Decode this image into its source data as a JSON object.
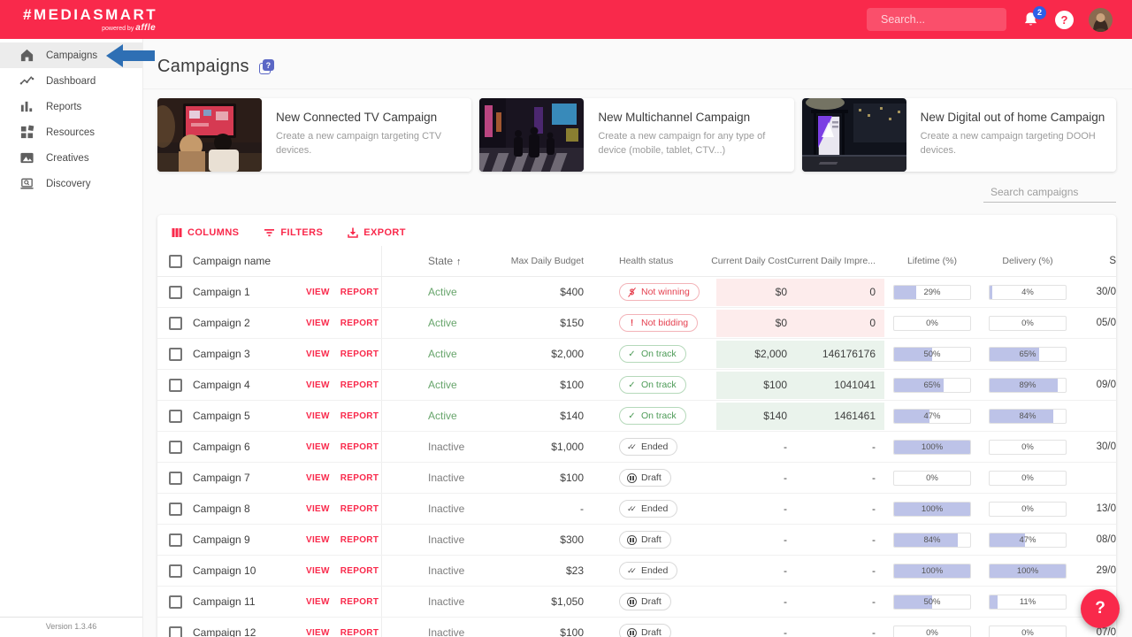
{
  "topbar": {
    "logo_main": "#MEDIASMART",
    "logo_powered": "powered by",
    "logo_brand": "affle",
    "search_placeholder": "Search...",
    "notification_count": "2",
    "help_label": "?"
  },
  "sidebar": {
    "items": [
      {
        "label": "Campaigns",
        "icon": "home-icon",
        "active": true
      },
      {
        "label": "Dashboard",
        "icon": "trend-chart-icon",
        "active": false
      },
      {
        "label": "Reports",
        "icon": "bar-chart-icon",
        "active": false
      },
      {
        "label": "Resources",
        "icon": "widgets-icon",
        "active": false
      },
      {
        "label": "Creatives",
        "icon": "image-icon",
        "active": false
      },
      {
        "label": "Discovery",
        "icon": "laptop-search-icon",
        "active": false
      }
    ],
    "version": "Version 1.3.46"
  },
  "page": {
    "title": "Campaigns",
    "title_help": "?"
  },
  "cards": [
    {
      "title": "New Connected TV Campaign",
      "description": "Create a new campaign targeting CTV devices."
    },
    {
      "title": "New Multichannel Campaign",
      "description": "Create a new campaign for any type of device (mobile, tablet, CTV...)"
    },
    {
      "title": "New Digital out of home Campaign",
      "description": "Create a new campaign targeting DOOH devices."
    }
  ],
  "table": {
    "search_placeholder": "Search campaigns",
    "toolbar": {
      "columns": "COLUMNS",
      "filters": "FILTERS",
      "export": "EXPORT"
    },
    "sort_arrow": "↑",
    "headers": {
      "name": "Campaign name",
      "state": "State",
      "budget": "Max Daily Budget",
      "health": "Health status",
      "cost": "Current Daily Cost",
      "impressions": "Current Daily Impre...",
      "lifetime": "Lifetime (%)",
      "delivery": "Delivery (%)",
      "date": "S"
    },
    "labels": {
      "view": "VIEW",
      "report": "REPORT"
    },
    "rows": [
      {
        "name": "Campaign 1",
        "state": "Active",
        "budget": "$400",
        "health": "Not winning",
        "health_type": "bad",
        "health_icon": "money",
        "tint": "bad",
        "cost": "$0",
        "impressions": "0",
        "lifetime": "29%",
        "delivery": "4%",
        "date": "30/0"
      },
      {
        "name": "Campaign 2",
        "state": "Active",
        "budget": "$150",
        "health": "Not bidding",
        "health_type": "bad",
        "health_icon": "excl",
        "tint": "bad",
        "cost": "$0",
        "impressions": "0",
        "lifetime": "0%",
        "delivery": "0%",
        "date": "05/0"
      },
      {
        "name": "Campaign 3",
        "state": "Active",
        "budget": "$2,000",
        "health": "On track",
        "health_type": "good",
        "health_icon": "check",
        "tint": "good",
        "cost": "$2,000",
        "impressions": "146176176",
        "lifetime": "50%",
        "delivery": "65%",
        "date": ""
      },
      {
        "name": "Campaign 4",
        "state": "Active",
        "budget": "$100",
        "health": "On track",
        "health_type": "good",
        "health_icon": "check",
        "tint": "good",
        "cost": "$100",
        "impressions": "1041041",
        "lifetime": "65%",
        "delivery": "89%",
        "date": "09/0"
      },
      {
        "name": "Campaign 5",
        "state": "Active",
        "budget": "$140",
        "health": "On track",
        "health_type": "good",
        "health_icon": "check",
        "tint": "good",
        "cost": "$140",
        "impressions": "1461461",
        "lifetime": "47%",
        "delivery": "84%",
        "date": ""
      },
      {
        "name": "Campaign 6",
        "state": "Inactive",
        "budget": "$1,000",
        "health": "Ended",
        "health_type": "neutral",
        "health_icon": "doublecheck",
        "tint": "none",
        "cost": "-",
        "impressions": "-",
        "lifetime": "100%",
        "delivery": "0%",
        "date": "30/0"
      },
      {
        "name": "Campaign 7",
        "state": "Inactive",
        "budget": "$100",
        "health": "Draft",
        "health_type": "neutral",
        "health_icon": "pause",
        "tint": "none",
        "cost": "-",
        "impressions": "-",
        "lifetime": "0%",
        "delivery": "0%",
        "date": ""
      },
      {
        "name": "Campaign 8",
        "state": "Inactive",
        "budget": "-",
        "health": "Ended",
        "health_type": "neutral",
        "health_icon": "doublecheck",
        "tint": "none",
        "cost": "-",
        "impressions": "-",
        "lifetime": "100%",
        "delivery": "0%",
        "date": "13/0"
      },
      {
        "name": "Campaign 9",
        "state": "Inactive",
        "budget": "$300",
        "health": "Draft",
        "health_type": "neutral",
        "health_icon": "pause",
        "tint": "none",
        "cost": "-",
        "impressions": "-",
        "lifetime": "84%",
        "delivery": "47%",
        "date": "08/0"
      },
      {
        "name": "Campaign 10",
        "state": "Inactive",
        "budget": "$23",
        "health": "Ended",
        "health_type": "neutral",
        "health_icon": "doublecheck",
        "tint": "none",
        "cost": "-",
        "impressions": "-",
        "lifetime": "100%",
        "delivery": "100%",
        "date": "29/0"
      },
      {
        "name": "Campaign 11",
        "state": "Inactive",
        "budget": "$1,050",
        "health": "Draft",
        "health_type": "neutral",
        "health_icon": "pause",
        "tint": "none",
        "cost": "-",
        "impressions": "-",
        "lifetime": "50%",
        "delivery": "11%",
        "date": ""
      },
      {
        "name": "Campaign 12",
        "state": "Inactive",
        "budget": "$100",
        "health": "Draft",
        "health_type": "neutral",
        "health_icon": "pause",
        "tint": "none",
        "cost": "-",
        "impressions": "-",
        "lifetime": "0%",
        "delivery": "0%",
        "date": "07/0"
      }
    ]
  },
  "fab": {
    "label": "?"
  },
  "colors": {
    "brand_red": "#f9294b",
    "arrow_blue": "#2e6fb4",
    "badge_blue": "#2c5fe8",
    "bar_fill": "#bdc3e8",
    "good_green": "#4d9b57",
    "bad_red": "#e5404f",
    "tint_bad_bg": "#fdecec",
    "tint_good_bg": "#eaf3ec",
    "help_purple": "#5b67c5"
  }
}
